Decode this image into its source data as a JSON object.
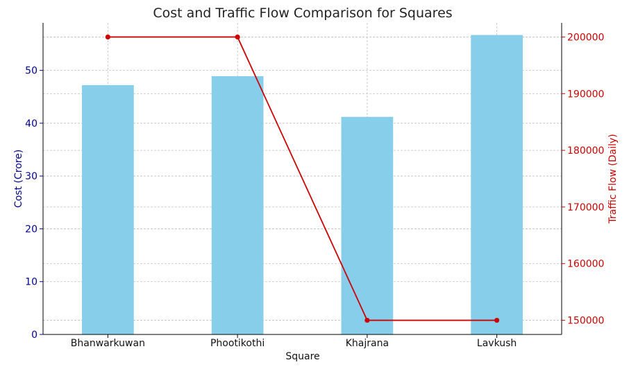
{
  "chart_data": {
    "type": "bar",
    "title": "Cost and Traffic Flow Comparison for Squares",
    "xlabel": "Square",
    "ylabel": "Cost (Crore)",
    "y2label": "Traffic Flow (Daily)",
    "categories": [
      "Bhanwarkuwan",
      "Phootikothi",
      "Khajrana",
      "Lavkush"
    ],
    "series": [
      {
        "type": "bar",
        "axis": "left",
        "color": "#87ceeb",
        "values": [
          47.2,
          48.9,
          41.2,
          56.7
        ]
      },
      {
        "type": "line",
        "axis": "right",
        "color": "#cc0000",
        "values": [
          200000,
          200000,
          150000,
          150000
        ]
      }
    ],
    "ylim": [
      0,
      59
    ],
    "y2lim": [
      147500,
      202500
    ],
    "yticks": [
      0,
      10,
      20,
      30,
      40,
      50
    ],
    "y2ticks": [
      150000,
      160000,
      170000,
      180000,
      190000,
      200000
    ],
    "grid": true,
    "colors": {
      "left_axis": "#00008b",
      "right_axis": "#cc0000",
      "grid": "#bfbfbf"
    }
  }
}
